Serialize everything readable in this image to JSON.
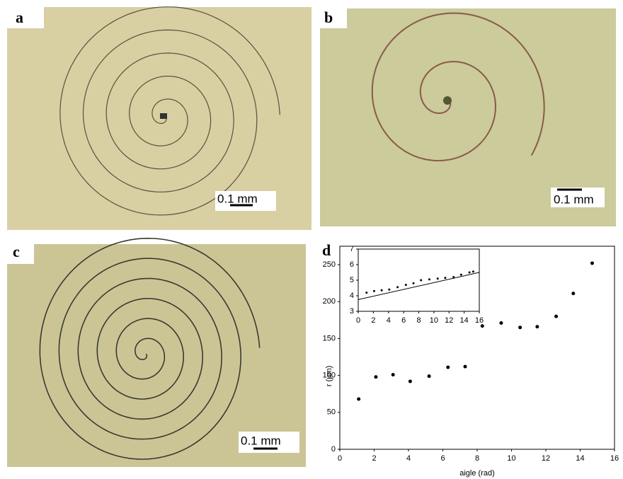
{
  "panels": [
    {
      "label": "a",
      "scale_bar": "0.1 mm"
    },
    {
      "label": "b",
      "scale_bar": "0.1 mm"
    },
    {
      "label": "c",
      "scale_bar": "0.1 mm"
    },
    {
      "label": "d"
    }
  ],
  "chart_data": [
    {
      "type": "scatter",
      "x_label": "aigle (rad)",
      "y_label": "r (µm)",
      "xlim": [
        0,
        16
      ],
      "xticks": [
        0,
        2,
        4,
        6,
        8,
        10,
        12,
        14,
        16
      ],
      "ylim": [
        0,
        275
      ],
      "yticks": [
        0,
        50,
        100,
        150,
        200,
        250
      ],
      "color": "#000000",
      "x": [
        1.1,
        2.1,
        3.1,
        4.1,
        5.2,
        6.3,
        7.3,
        8.3,
        9.4,
        10.5,
        11.5,
        12.6,
        13.6,
        14.7
      ],
      "values": [
        68,
        98,
        101,
        92,
        99,
        111,
        112,
        167,
        171,
        165,
        166,
        180,
        211,
        252
      ]
    },
    {
      "type": "scatter",
      "xlim": [
        0,
        16
      ],
      "xticks": [
        0,
        2,
        4,
        6,
        8,
        10,
        12,
        14,
        16
      ],
      "ylim": [
        3,
        7
      ],
      "yticks": [
        3,
        4,
        5,
        6,
        7
      ],
      "color": "#000000",
      "x": [
        1.1,
        2.1,
        3.1,
        4.1,
        5.2,
        6.3,
        7.3,
        8.3,
        9.4,
        10.5,
        11.5,
        12.6,
        13.6,
        14.7,
        15.2
      ],
      "values": [
        4.2,
        4.3,
        4.35,
        4.4,
        4.55,
        4.7,
        4.8,
        5.0,
        5.05,
        5.1,
        5.15,
        5.2,
        5.35,
        5.5,
        5.55
      ],
      "fit_line": {
        "x": [
          0,
          16
        ],
        "values": [
          3.75,
          5.5
        ]
      }
    }
  ]
}
